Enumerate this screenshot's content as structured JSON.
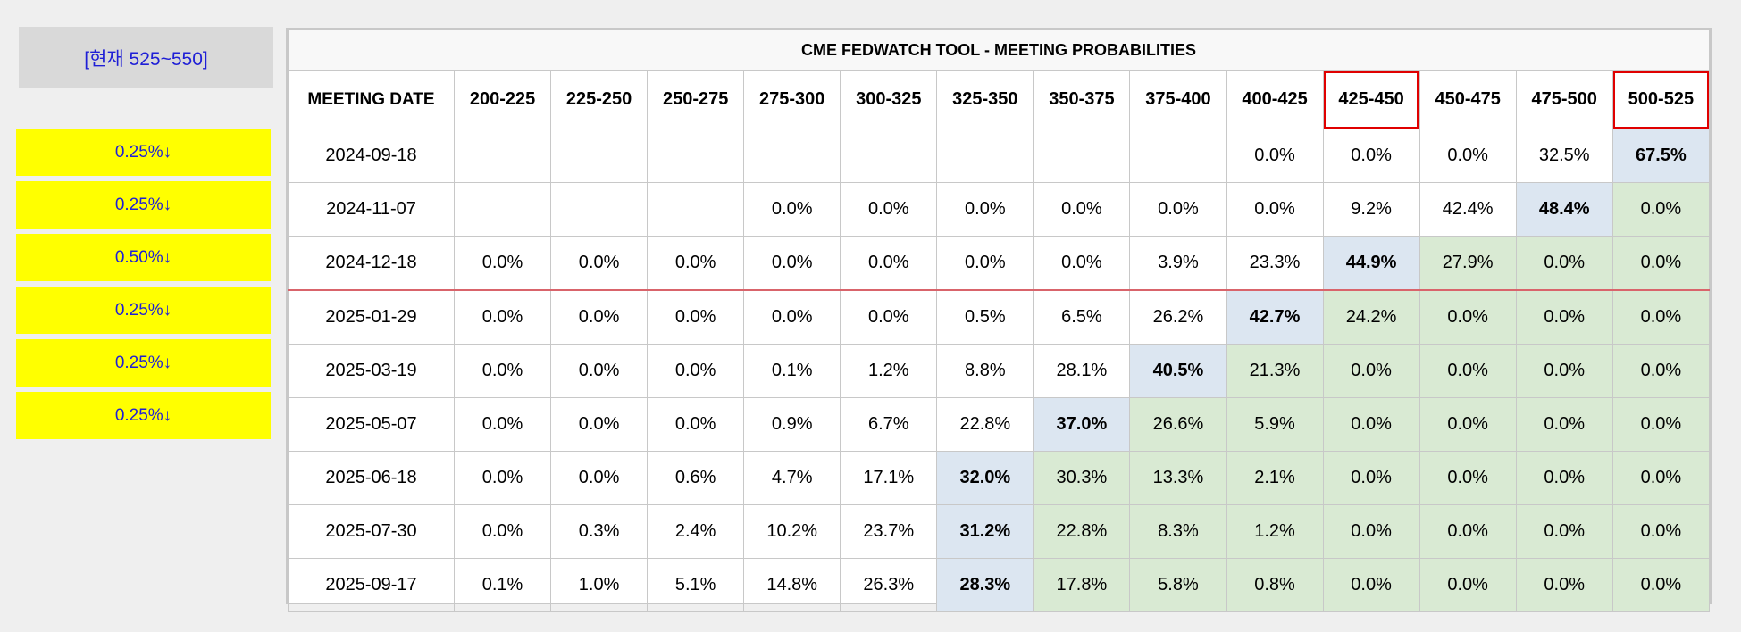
{
  "current_rate_label": "[현재 525~550]",
  "rate_changes": [
    "0.25%↓",
    "0.25%↓",
    "0.50%↓",
    "0.25%↓",
    "0.25%↓",
    "0.25%↓"
  ],
  "table": {
    "title": "CME FEDWATCH TOOL - MEETING PROBABILITIES",
    "meeting_header": "MEETING DATE",
    "ranges": [
      "200-225",
      "225-250",
      "250-275",
      "275-300",
      "300-325",
      "325-350",
      "350-375",
      "375-400",
      "400-425",
      "425-450",
      "450-475",
      "475-500",
      "500-525"
    ],
    "boxed_ranges": [
      "425-450",
      "500-525"
    ],
    "highlight_color_blue": "#dce6f1",
    "highlight_color_green": "#d9ead3",
    "rows": [
      {
        "date": "2024-09-18",
        "values": [
          "",
          "",
          "",
          "",
          "",
          "",
          "",
          "",
          "0.0%",
          "0.0%",
          "0.0%",
          "32.5%",
          "67.5%"
        ],
        "max": 12
      },
      {
        "date": "2024-11-07",
        "values": [
          "",
          "",
          "",
          "0.0%",
          "0.0%",
          "0.0%",
          "0.0%",
          "0.0%",
          "0.0%",
          "9.2%",
          "42.4%",
          "48.4%",
          "0.0%"
        ],
        "max": 11
      },
      {
        "date": "2024-12-18",
        "values": [
          "0.0%",
          "0.0%",
          "0.0%",
          "0.0%",
          "0.0%",
          "0.0%",
          "0.0%",
          "3.9%",
          "23.3%",
          "44.9%",
          "27.9%",
          "0.0%",
          "0.0%"
        ],
        "max": 9
      },
      {
        "date": "2025-01-29",
        "values": [
          "0.0%",
          "0.0%",
          "0.0%",
          "0.0%",
          "0.0%",
          "0.5%",
          "6.5%",
          "26.2%",
          "42.7%",
          "24.2%",
          "0.0%",
          "0.0%",
          "0.0%"
        ],
        "max": 8
      },
      {
        "date": "2025-03-19",
        "values": [
          "0.0%",
          "0.0%",
          "0.0%",
          "0.1%",
          "1.2%",
          "8.8%",
          "28.1%",
          "40.5%",
          "21.3%",
          "0.0%",
          "0.0%",
          "0.0%",
          "0.0%"
        ],
        "max": 7
      },
      {
        "date": "2025-05-07",
        "values": [
          "0.0%",
          "0.0%",
          "0.0%",
          "0.9%",
          "6.7%",
          "22.8%",
          "37.0%",
          "26.6%",
          "5.9%",
          "0.0%",
          "0.0%",
          "0.0%",
          "0.0%"
        ],
        "max": 6
      },
      {
        "date": "2025-06-18",
        "values": [
          "0.0%",
          "0.0%",
          "0.6%",
          "4.7%",
          "17.1%",
          "32.0%",
          "30.3%",
          "13.3%",
          "2.1%",
          "0.0%",
          "0.0%",
          "0.0%",
          "0.0%"
        ],
        "max": 5
      },
      {
        "date": "2025-07-30",
        "values": [
          "0.0%",
          "0.3%",
          "2.4%",
          "10.2%",
          "23.7%",
          "31.2%",
          "22.8%",
          "8.3%",
          "1.2%",
          "0.0%",
          "0.0%",
          "0.0%",
          "0.0%"
        ],
        "max": 5
      },
      {
        "date": "2025-09-17",
        "values": [
          "0.1%",
          "1.0%",
          "5.1%",
          "14.8%",
          "26.3%",
          "28.3%",
          "17.8%",
          "5.8%",
          "0.8%",
          "0.0%",
          "0.0%",
          "0.0%",
          "0.0%"
        ],
        "max": 5
      }
    ],
    "separator_after_row": 2
  }
}
